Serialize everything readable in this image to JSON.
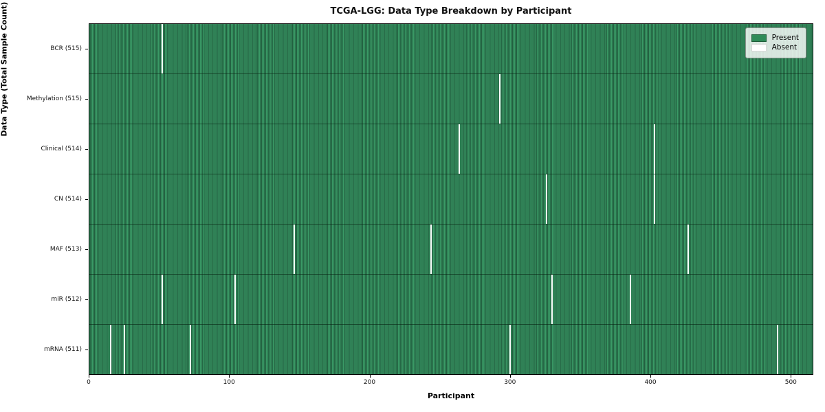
{
  "title": "TCGA-LGG: Data Type Breakdown by Participant",
  "chart_data": {
    "type": "heatmap",
    "title": "TCGA-LGG: Data Type Breakdown by Participant",
    "xlabel": "Participant",
    "ylabel": "Data Type (Total Sample Count)",
    "xlim": [
      0,
      516
    ],
    "x_ticks": [
      "0",
      "100",
      "200",
      "300",
      "400",
      "500"
    ],
    "x_tick_values": [
      0,
      100,
      200,
      300,
      400,
      500
    ],
    "n_participants": 516,
    "grid": false,
    "legend_position": "upper right",
    "legend": [
      {
        "label": "Present",
        "color": "#2e8b57"
      },
      {
        "label": "Absent",
        "color": "#ffffff"
      }
    ],
    "colors": {
      "present": "#2e8b57",
      "present_stripe_dark": "#256845",
      "present_stripe_light": "#3a9a66",
      "absent": "#fafafa"
    },
    "rows": [
      {
        "data_type": "BCR",
        "label": "BCR (515)",
        "present_count": 515,
        "absent_participants": [
          52
        ]
      },
      {
        "data_type": "Methylation",
        "label": "Methylation (515)",
        "present_count": 515,
        "absent_participants": [
          293
        ]
      },
      {
        "data_type": "Clinical",
        "label": "Clinical (514)",
        "present_count": 514,
        "absent_participants": [
          264,
          403
        ]
      },
      {
        "data_type": "CN",
        "label": "CN (514)",
        "present_count": 514,
        "absent_participants": [
          326,
          403
        ]
      },
      {
        "data_type": "MAF",
        "label": "MAF (513)",
        "present_count": 513,
        "absent_participants": [
          146,
          244,
          427
        ]
      },
      {
        "data_type": "miR",
        "label": "miR (512)",
        "present_count": 512,
        "absent_participants": [
          52,
          104,
          330,
          386
        ]
      },
      {
        "data_type": "mRNA",
        "label": "mRNA (511)",
        "present_count": 511,
        "absent_participants": [
          15,
          25,
          72,
          300,
          491
        ]
      }
    ]
  }
}
